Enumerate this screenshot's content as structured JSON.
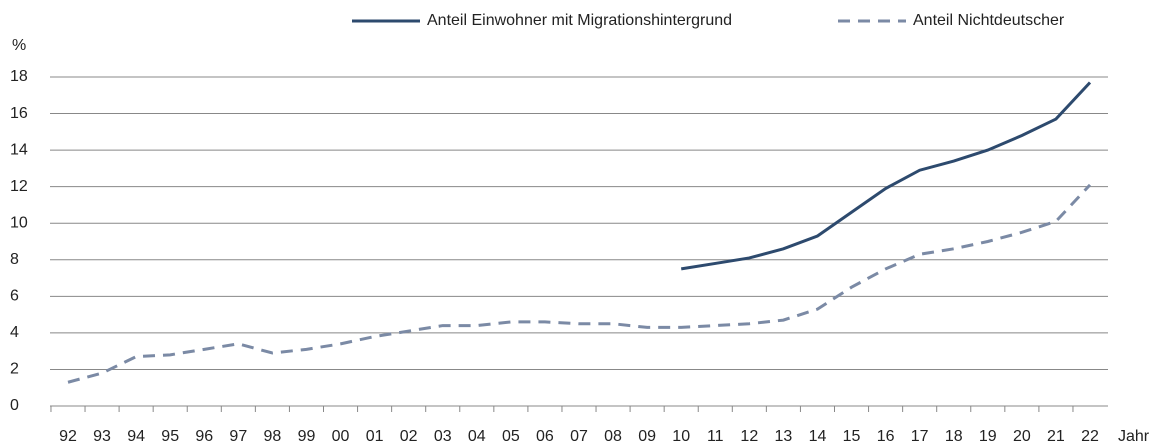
{
  "chart_data": {
    "type": "line",
    "y_label": "%",
    "x_label": "Jahr",
    "categories": [
      "92",
      "93",
      "94",
      "95",
      "96",
      "97",
      "98",
      "99",
      "00",
      "01",
      "02",
      "03",
      "04",
      "05",
      "06",
      "07",
      "08",
      "09",
      "10",
      "11",
      "12",
      "13",
      "14",
      "15",
      "16",
      "17",
      "18",
      "19",
      "20",
      "21",
      "22"
    ],
    "series": [
      {
        "name": "Anteil Einwohner mit Migrationshintergrund",
        "color": "#2d4a6e",
        "dash": false,
        "values": [
          null,
          null,
          null,
          null,
          null,
          null,
          null,
          null,
          null,
          null,
          null,
          null,
          null,
          null,
          null,
          null,
          null,
          null,
          7.5,
          7.8,
          8.1,
          8.6,
          9.3,
          10.6,
          11.9,
          12.9,
          13.4,
          14.0,
          14.8,
          15.7,
          17.7
        ]
      },
      {
        "name": "Anteil Nichtdeutscher",
        "color": "#7b8aa5",
        "dash": true,
        "values": [
          1.3,
          1.8,
          2.7,
          2.8,
          3.1,
          3.4,
          2.9,
          3.1,
          3.4,
          3.8,
          4.1,
          4.4,
          4.4,
          4.6,
          4.6,
          4.5,
          4.5,
          4.3,
          4.3,
          4.4,
          4.5,
          4.7,
          5.3,
          6.5,
          7.5,
          8.3,
          8.6,
          9.0,
          9.5,
          10.1,
          12.1
        ]
      }
    ],
    "ylim": [
      0,
      18
    ],
    "yticks": [
      0,
      2,
      4,
      6,
      8,
      10,
      12,
      14,
      16,
      18
    ],
    "grid": true
  }
}
